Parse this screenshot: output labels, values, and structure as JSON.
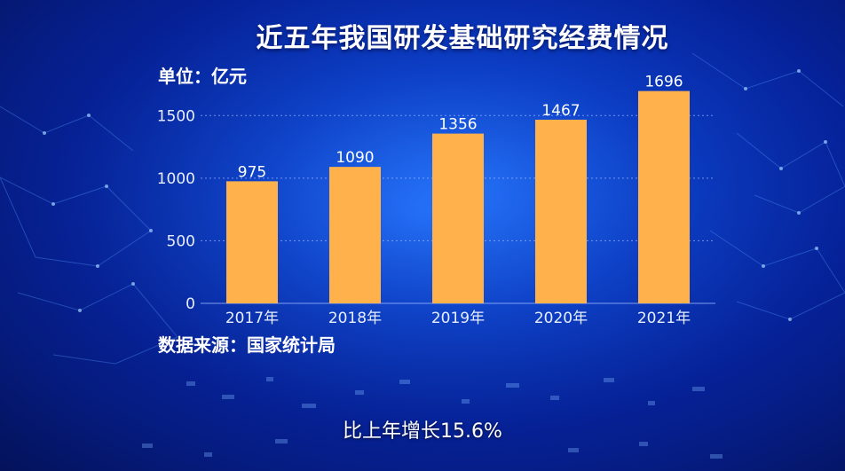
{
  "title": "近五年我国研发基础研究经费情况",
  "unit_label": "单位：亿元",
  "source_label": "数据来源：国家统计局",
  "caption": "比上年增长15.6%",
  "colors": {
    "bar": "#FFB24C",
    "axis_text": "#E8EEFF",
    "value_text": "#FFFFFF",
    "grid": "#9FB8FF"
  },
  "chart_data": {
    "type": "bar",
    "categories": [
      "2017年",
      "2018年",
      "2019年",
      "2020年",
      "2021年"
    ],
    "values": [
      975,
      1090,
      1356,
      1467,
      1696
    ],
    "yticks": [
      0,
      500,
      1000,
      1500
    ],
    "ylim": [
      0,
      1750
    ],
    "grid": true
  }
}
